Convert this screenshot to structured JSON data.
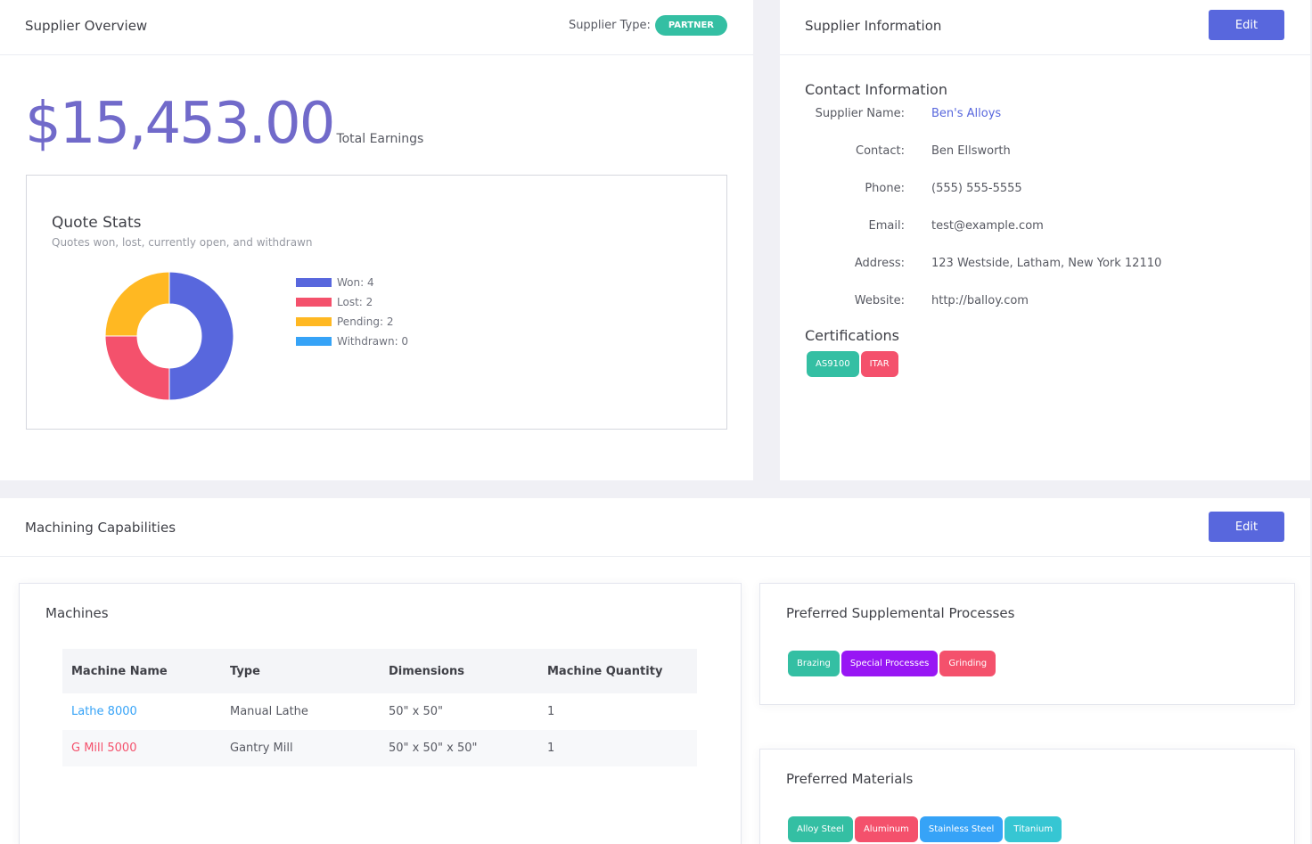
{
  "overview": {
    "title": "Supplier Overview",
    "supplier_type_label": "Supplier Type:",
    "supplier_type_badge": "PARTNER",
    "total_amount": "$15,453.00",
    "total_label": "Total Earnings"
  },
  "quote_stats": {
    "title": "Quote Stats",
    "subtitle": "Quotes won, lost, currently open, and withdrawn",
    "legend": [
      {
        "label": "Won: 4",
        "color": "#5867dd"
      },
      {
        "label": "Lost: 2",
        "color": "#f4516c"
      },
      {
        "label": "Pending: 2",
        "color": "#ffb822"
      },
      {
        "label": "Withdrawn: 0",
        "color": "#36a3f7"
      }
    ]
  },
  "chart_data": {
    "type": "pie",
    "categories": [
      "Won",
      "Lost",
      "Pending",
      "Withdrawn"
    ],
    "values": [
      4,
      2,
      2,
      0
    ],
    "colors": [
      "#5867dd",
      "#f4516c",
      "#ffb822",
      "#36a3f7"
    ],
    "title": "Quote Stats",
    "subtitle": "Quotes won, lost, currently open, and withdrawn",
    "legend": "right"
  },
  "supplier_info": {
    "title": "Supplier Information",
    "edit_label": "Edit",
    "contact_heading": "Contact Information",
    "fields": [
      {
        "label": "Supplier Name:",
        "value": "Ben's Alloys"
      },
      {
        "label": "Contact:",
        "value": "Ben Ellsworth"
      },
      {
        "label": "Phone:",
        "value": "(555) 555-5555"
      },
      {
        "label": "Email:",
        "value": "test@example.com"
      },
      {
        "label": "Address:",
        "value": "123 Westside, Latham, New York 12110"
      },
      {
        "label": "Website:",
        "value": "http://balloy.com"
      }
    ],
    "certifications_heading": "Certifications",
    "certifications": [
      {
        "label": "AS9100",
        "color": "#34bfa3"
      },
      {
        "label": "ITAR",
        "color": "#f4516c"
      }
    ]
  },
  "capabilities": {
    "title": "Machining Capabilities",
    "edit_label": "Edit",
    "machines": {
      "title": "Machines",
      "columns": [
        "Machine Name",
        "Type",
        "Dimensions",
        "Machine Quantity"
      ],
      "rows": [
        {
          "name": "Lathe 8000",
          "name_color": "#36a3f7",
          "type": "Manual Lathe",
          "dimensions": "50\" x 50\"",
          "quantity": "1"
        },
        {
          "name": "G Mill 5000",
          "name_color": "#f4516c",
          "type": "Gantry Mill",
          "dimensions": "50\" x 50\" x 50\"",
          "quantity": "1"
        }
      ]
    },
    "processes": {
      "title": "Preferred Supplemental Processes",
      "items": [
        {
          "label": "Brazing",
          "color": "#34bfa3"
        },
        {
          "label": "Special Processes",
          "color": "#9816f4"
        },
        {
          "label": "Grinding",
          "color": "#f4516c"
        }
      ]
    },
    "materials": {
      "title": "Preferred Materials",
      "items": [
        {
          "label": "Alloy Steel",
          "color": "#34bfa3"
        },
        {
          "label": "Aluminum",
          "color": "#f4516c"
        },
        {
          "label": "Stainless Steel",
          "color": "#36a3f7"
        },
        {
          "label": "Titanium",
          "color": "#36c6d3"
        }
      ]
    }
  }
}
